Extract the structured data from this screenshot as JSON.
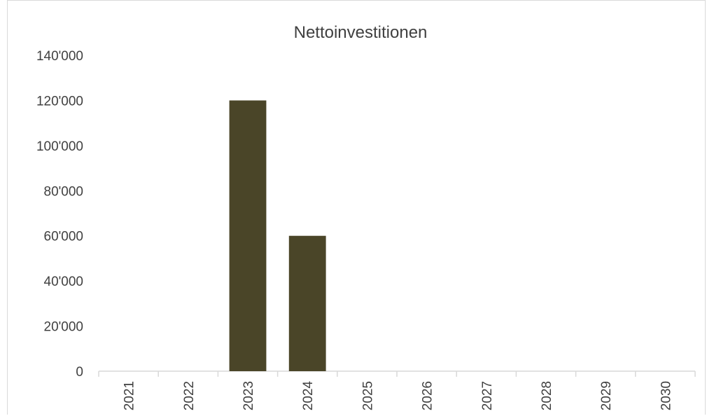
{
  "chart_data": {
    "type": "bar",
    "title": "Nettoinvestitionen",
    "xlabel": "",
    "ylabel": "",
    "categories": [
      "2021",
      "2022",
      "2023",
      "2024",
      "2025",
      "2026",
      "2027",
      "2028",
      "2029",
      "2030"
    ],
    "values": [
      0,
      0,
      120000,
      60000,
      0,
      0,
      0,
      0,
      0,
      0
    ],
    "ylim": [
      0,
      140000
    ],
    "yticks": [
      0,
      20000,
      40000,
      60000,
      80000,
      100000,
      120000,
      140000
    ],
    "ytick_labels": [
      "0",
      "20'000",
      "40'000",
      "60'000",
      "80'000",
      "100'000",
      "120'000",
      "140'000"
    ],
    "grid": false,
    "legend": "none",
    "bar_color": "#4a4528",
    "axis_color": "#d9d9d9"
  }
}
